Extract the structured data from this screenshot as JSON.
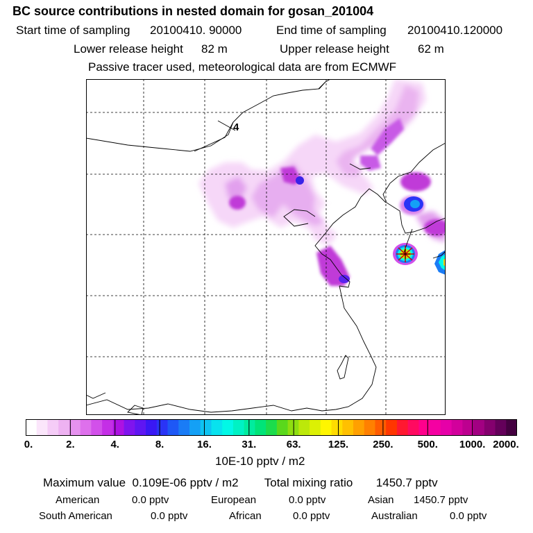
{
  "header": {
    "title": "BC  source contributions in nested domain for gosan_201004",
    "start_label": "Start time of sampling",
    "start_value": "20100410. 90000",
    "end_label": "End time of sampling",
    "end_value": "20100410.120000",
    "lower_label": "Lower release height",
    "lower_value": "82 m",
    "upper_label": "Upper release height",
    "upper_value": "62 m",
    "tracer_note": "Passive tracer used, meteorological data are from ECMWF"
  },
  "map": {
    "contour_label": "4",
    "receptor_marker": "gosan-station-star"
  },
  "colorbar": {
    "ticks": [
      "0.",
      "2.",
      "4.",
      "8.",
      "16.",
      "31.",
      "63.",
      "125.",
      "250.",
      "500.",
      "1000.",
      "2000."
    ],
    "colors": [
      "#ffffff",
      "#fbe6fb",
      "#f5ccf7",
      "#eeb2f2",
      "#e692ef",
      "#de70ec",
      "#d250ea",
      "#c42fe6",
      "#ad12e2",
      "#7f14ee",
      "#5f16f2",
      "#3a18f4",
      "#2a34f6",
      "#1e58f6",
      "#1a7cf6",
      "#14a0f6",
      "#0ec4f2",
      "#08e2ee",
      "#02f8e6",
      "#00f2c4",
      "#00ec9e",
      "#00e478",
      "#1cdc4c",
      "#5ad81c",
      "#8ede10",
      "#bce80a",
      "#dcf004",
      "#fff600",
      "#ffdc00",
      "#ffc000",
      "#ffa000",
      "#ff8000",
      "#ff5c00",
      "#ff3600",
      "#ff1830",
      "#ff0a60",
      "#ff008c",
      "#f500a2",
      "#e600a8",
      "#d2009c",
      "#bd0090",
      "#a20082",
      "#84006e",
      "#64005a",
      "#440040"
    ],
    "units": "10E-10 pptv / m2"
  },
  "summary": {
    "max_label": "Maximum value",
    "max_value": "0.109E-06 pptv / m2",
    "total_label": "Total mixing ratio",
    "total_value": "1450.7 pptv",
    "regions": [
      {
        "name": "American",
        "value": "0.0 pptv"
      },
      {
        "name": "European",
        "value": "0.0 pptv"
      },
      {
        "name": "Asian",
        "value": "1450.7 pptv"
      },
      {
        "name": "South American",
        "value": "0.0 pptv"
      },
      {
        "name": "African",
        "value": "0.0 pptv"
      },
      {
        "name": "Australian",
        "value": "0.0 pptv"
      }
    ]
  }
}
